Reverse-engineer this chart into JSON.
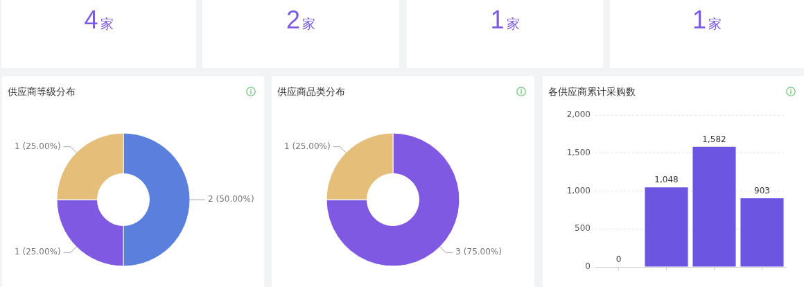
{
  "chart_data": [
    {
      "type": "other",
      "values": [
        4
      ],
      "data_labels": true,
      "annotations": [
        "家"
      ]
    },
    {
      "type": "other",
      "values": [
        2
      ],
      "data_labels": true,
      "annotations": [
        "家"
      ]
    },
    {
      "type": "other",
      "values": [
        1
      ],
      "data_labels": true,
      "annotations": [
        "家"
      ]
    },
    {
      "type": "other",
      "values": [
        1
      ],
      "data_labels": true,
      "annotations": [
        "家"
      ]
    },
    {
      "type": "donut",
      "title": "供应商等级分布",
      "categories": [
        null,
        null,
        null
      ],
      "values": [
        2,
        1,
        1
      ],
      "colors": [
        "#5b7fdc",
        "#7f59e2",
        "#e5bf7a"
      ],
      "value_labels": [
        "2 (50.00%)",
        "1 (25.00%)",
        "1 (25.00%)"
      ]
    },
    {
      "type": "donut",
      "title": "供应商品类分布",
      "categories": [
        null,
        null
      ],
      "values": [
        3,
        1
      ],
      "colors": [
        "#7f59e2",
        "#e5bf7a"
      ],
      "value_labels": [
        "3 (75.00%)",
        "1 (25.00%)"
      ]
    },
    {
      "type": "bar",
      "title": "各供应商累计采购数",
      "categories": [
        null,
        null,
        null,
        null
      ],
      "values": [
        0,
        1048,
        1582,
        903
      ],
      "color": "#6c56e1",
      "value_labels": [
        "0",
        "1,048",
        "1,582",
        "903"
      ],
      "ylim": [
        0,
        2000
      ],
      "yticks": [
        0,
        500,
        {
          "value": 1000,
          "label": "1,000"
        },
        {
          "value": 1500,
          "label": "1,500"
        },
        {
          "value": 2000,
          "label": "2,000"
        }
      ],
      "grid": "y"
    }
  ]
}
